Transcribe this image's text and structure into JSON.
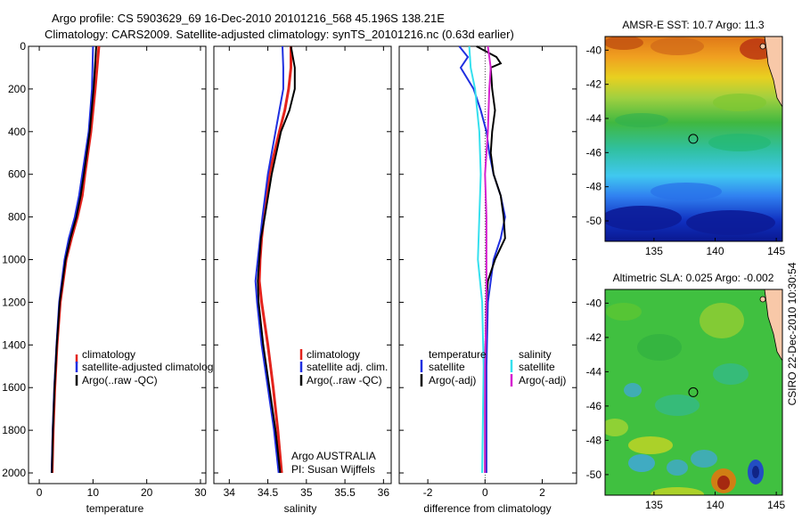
{
  "title_line1": "Argo profile: CS 5903629_69 16-Dec-2010 20101216_568 45.196S 138.21E",
  "title_line2": "Climatology: CARS2009. Satellite-adjusted climatology: synTS_20101216.nc (0.63d earlier)",
  "side_label": "CSIRO 22-Dec-2010 10:30:54",
  "colors": {
    "climatology": "#e3231c",
    "satellite": "#1f2fe0",
    "argo": "#000000",
    "sat_diff": "#35e0ee",
    "argo_diff": "#d620d0"
  },
  "chart_data": [
    {
      "type": "line",
      "name": "temperature",
      "xlabel": "temperature",
      "ylabel": "depth",
      "xlim": [
        -2,
        31
      ],
      "ylim": [
        2050,
        0
      ],
      "xticks": [
        0,
        10,
        20,
        30
      ],
      "xtick_labels": [
        "0",
        "10",
        "20",
        "30"
      ],
      "yticks": [
        0,
        200,
        400,
        600,
        800,
        1000,
        1200,
        1400,
        1600,
        1800,
        2000
      ],
      "ytick_labels": [
        "0",
        "200",
        "400",
        "600",
        "800",
        "1000",
        "1200",
        "1400",
        "1600",
        "1800",
        "2000"
      ],
      "legend": {
        "placement": "lower-middle",
        "entries": [
          "climatology",
          "satellite-adjusted climatology",
          "Argo(..raw -QC)"
        ]
      },
      "series": [
        {
          "name": "climatology",
          "color_key": "climatology",
          "depth": [
            0,
            200,
            400,
            600,
            700,
            800,
            900,
            1000,
            1200,
            1400,
            1600,
            1800,
            2000
          ],
          "values": [
            11.1,
            10.4,
            9.6,
            8.5,
            8.0,
            7.1,
            6.0,
            5.0,
            3.9,
            3.3,
            2.9,
            2.6,
            2.4
          ]
        },
        {
          "name": "satellite-adjusted climatology",
          "color_key": "satellite",
          "depth": [
            0,
            200,
            400,
            600,
            700,
            800,
            900,
            1000,
            1200,
            1400,
            1600,
            1800,
            2000
          ],
          "values": [
            10.0,
            9.8,
            9.2,
            8.0,
            7.4,
            6.6,
            5.5,
            4.7,
            3.7,
            3.2,
            2.8,
            2.5,
            2.3
          ]
        },
        {
          "name": "Argo(..raw -QC)",
          "color_key": "argo",
          "depth": [
            0,
            200,
            400,
            600,
            700,
            800,
            900,
            1000,
            1200,
            1400,
            1600,
            1800,
            2000
          ],
          "values": [
            10.6,
            10.1,
            9.4,
            8.3,
            7.7,
            6.9,
            5.8,
            4.9,
            3.8,
            3.25,
            2.85,
            2.55,
            2.35
          ]
        }
      ]
    },
    {
      "type": "line",
      "name": "salinity",
      "xlabel": "salinity",
      "ylabel": "depth",
      "xlim": [
        33.8,
        36.1
      ],
      "ylim": [
        2050,
        0
      ],
      "xticks": [
        34,
        34.5,
        35,
        35.5,
        36
      ],
      "xtick_labels": [
        "34",
        "34.5",
        "35",
        "35.5",
        "36"
      ],
      "legend": {
        "placement": "lower-middle",
        "entries": [
          "climatology",
          "satellite adj. clim.",
          "Argo(..raw -QC)"
        ]
      },
      "annotation_lines": [
        "Argo AUSTRALIA",
        "PI: Susan Wijffels"
      ],
      "series": [
        {
          "name": "climatology",
          "color_key": "climatology",
          "depth": [
            0,
            100,
            200,
            300,
            400,
            600,
            800,
            900,
            1000,
            1100,
            1200,
            1400,
            1600,
            1800,
            2000
          ],
          "values": [
            34.8,
            34.8,
            34.77,
            34.72,
            34.65,
            34.52,
            34.45,
            34.42,
            34.4,
            34.39,
            34.42,
            34.5,
            34.57,
            34.63,
            34.68
          ]
        },
        {
          "name": "satellite adj. clim.",
          "color_key": "satellite",
          "depth": [
            0,
            100,
            200,
            300,
            400,
            600,
            800,
            900,
            1000,
            1100,
            1200,
            1400,
            1600,
            1800,
            2000
          ],
          "values": [
            34.69,
            34.7,
            34.7,
            34.65,
            34.6,
            34.5,
            34.43,
            34.4,
            34.37,
            34.34,
            34.36,
            34.42,
            34.5,
            34.58,
            34.64
          ]
        },
        {
          "name": "Argo(..raw -QC)",
          "color_key": "argo",
          "depth": [
            0,
            100,
            200,
            300,
            400,
            600,
            800,
            900,
            1000,
            1100,
            1200,
            1400,
            1600,
            1800,
            2000
          ],
          "values": [
            34.8,
            34.85,
            34.85,
            34.78,
            34.67,
            34.55,
            34.46,
            34.41,
            34.39,
            34.37,
            34.38,
            34.44,
            34.52,
            34.6,
            34.66
          ]
        }
      ]
    },
    {
      "type": "line",
      "name": "difference",
      "xlabel": "difference from climatology",
      "ylabel": "depth",
      "xlim": [
        -3,
        3.2
      ],
      "ylim": [
        2050,
        0
      ],
      "xticks": [
        -2,
        0,
        2
      ],
      "xtick_labels": [
        "-2",
        "0",
        "2"
      ],
      "legend": {
        "placement": "lower-middle",
        "temperature_title": "temperature",
        "salinity_title": "salinity",
        "entries": [
          "satellite",
          "Argo(-adj)",
          "satellite",
          "Argo(-adj)"
        ]
      },
      "series": [
        {
          "name": "temperature satellite",
          "color_key": "satellite",
          "depth": [
            0,
            50,
            100,
            200,
            300,
            400,
            500,
            600,
            700,
            800,
            900,
            1000,
            1200,
            1500,
            2000
          ],
          "values": [
            -0.9,
            -0.6,
            -0.85,
            -0.4,
            -0.15,
            0.05,
            0.15,
            0.3,
            0.55,
            0.7,
            0.55,
            0.3,
            0.1,
            0.05,
            0.05
          ]
        },
        {
          "name": "temperature Argo(-adj)",
          "color_key": "argo",
          "depth": [
            0,
            50,
            80,
            100,
            200,
            300,
            400,
            500,
            600,
            700,
            800,
            900,
            1000,
            1100,
            1200,
            1500,
            2000
          ],
          "values": [
            -0.3,
            0.4,
            0.55,
            0.2,
            0.25,
            0.35,
            0.25,
            0.2,
            0.3,
            0.55,
            0.65,
            0.7,
            0.35,
            0.1,
            0.05,
            0.0,
            0.0
          ]
        },
        {
          "name": "salinity satellite",
          "color_key": "sat_diff",
          "depth": [
            0,
            100,
            200,
            400,
            600,
            800,
            1000,
            1200,
            1500,
            2000
          ],
          "values": [
            -0.55,
            -0.5,
            -0.35,
            -0.2,
            -0.15,
            -0.2,
            -0.25,
            -0.1,
            -0.05,
            -0.1
          ]
        },
        {
          "name": "salinity Argo(-adj)",
          "color_key": "argo_diff",
          "depth": [
            0,
            100,
            200,
            400,
            600,
            800,
            1000,
            1200,
            1500,
            2000
          ],
          "values": [
            0.1,
            0.2,
            0.15,
            0.1,
            0.0,
            0.05,
            0.05,
            0.05,
            0.0,
            0.0
          ]
        }
      ]
    },
    {
      "type": "heatmap",
      "name": "sst_map",
      "title": "AMSR-E SST: 10.7 Argo: 11.3",
      "xlim": [
        131,
        145.5
      ],
      "ylim": [
        -51.2,
        -39.2
      ],
      "xticks": [
        135,
        140,
        145
      ],
      "xtick_labels": [
        "135",
        "140",
        "145"
      ],
      "yticks": [
        -40,
        -42,
        -44,
        -46,
        -48,
        -50
      ],
      "ytick_labels": [
        "-40",
        "-42",
        "-44",
        "-46",
        "-48",
        "-50"
      ],
      "marker": {
        "lon": 138.21,
        "lat": -45.196
      }
    },
    {
      "type": "heatmap",
      "name": "sla_map",
      "title": "Altimetric SLA: 0.025 Argo: -0.002",
      "xlim": [
        131,
        145.5
      ],
      "ylim": [
        -51.2,
        -39.2
      ],
      "xticks": [
        135,
        140,
        145
      ],
      "xtick_labels": [
        "135",
        "140",
        "145"
      ],
      "yticks": [
        -40,
        -42,
        -44,
        -46,
        -48,
        -50
      ],
      "ytick_labels": [
        "-40",
        "-42",
        "-44",
        "-46",
        "-48",
        "-50"
      ],
      "marker": {
        "lon": 138.21,
        "lat": -45.196
      }
    }
  ]
}
